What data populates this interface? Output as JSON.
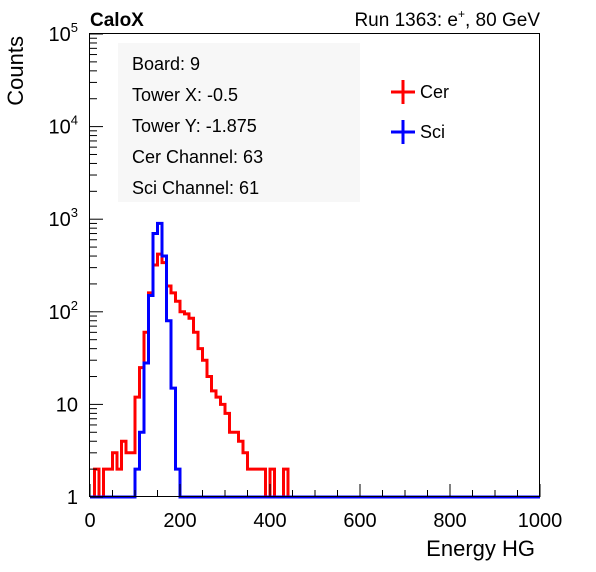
{
  "header": {
    "left_label": "CaloX",
    "right_label_prefix": "Run 1363: e",
    "right_label_sup": "+",
    "right_label_suffix": ", 80 GeV"
  },
  "info_box": {
    "lines": [
      "Board: 9",
      "Tower X: -0.5",
      "Tower Y: -1.875",
      "Cer Channel: 63",
      "Sci Channel: 61"
    ]
  },
  "legend": {
    "entries": [
      {
        "label": "Cer",
        "color": "#ff0000"
      },
      {
        "label": "Sci",
        "color": "#0000ff"
      }
    ]
  },
  "chart_data": {
    "type": "line",
    "xlabel": "Energy HG",
    "ylabel": "Counts",
    "xlim": [
      0,
      1000
    ],
    "ylim": [
      1,
      100000
    ],
    "y_scale": "log",
    "x_ticks": [
      0,
      200,
      400,
      600,
      800,
      1000
    ],
    "y_ticks": [
      {
        "value": 1,
        "base": "1",
        "exp": ""
      },
      {
        "value": 10,
        "base": "10",
        "exp": ""
      },
      {
        "value": 100,
        "base": "10",
        "exp": "2"
      },
      {
        "value": 1000,
        "base": "10",
        "exp": "3"
      },
      {
        "value": 10000,
        "base": "10",
        "exp": "4"
      },
      {
        "value": 100000,
        "base": "10",
        "exp": "5"
      }
    ],
    "grid": false,
    "legend_position": "top-right",
    "series": [
      {
        "name": "Cer",
        "color": "#ff0000",
        "x": [
          0,
          10,
          20,
          30,
          40,
          50,
          60,
          70,
          80,
          90,
          100,
          110,
          120,
          130,
          140,
          150,
          160,
          170,
          180,
          190,
          200,
          210,
          220,
          230,
          240,
          250,
          260,
          270,
          280,
          290,
          300,
          310,
          320,
          330,
          340,
          350,
          360,
          370,
          380,
          390,
          400,
          410,
          420,
          430,
          440,
          450,
          500,
          600,
          700,
          800,
          900,
          1000
        ],
        "y": [
          1,
          2,
          1,
          2,
          2,
          3,
          2,
          4,
          3,
          3,
          12,
          25,
          60,
          160,
          320,
          420,
          340,
          190,
          160,
          130,
          100,
          95,
          85,
          60,
          40,
          30,
          20,
          14,
          12,
          10,
          8,
          5,
          5,
          4,
          3,
          2,
          2,
          2,
          2,
          1,
          2,
          1,
          1,
          2,
          1,
          1,
          1,
          1,
          1,
          1,
          1,
          1
        ]
      },
      {
        "name": "Sci",
        "color": "#0000ff",
        "x": [
          0,
          90,
          100,
          110,
          120,
          130,
          140,
          150,
          160,
          170,
          180,
          190,
          200,
          1000
        ],
        "y": [
          1,
          1,
          2,
          5,
          28,
          150,
          700,
          900,
          400,
          80,
          15,
          2,
          1,
          1
        ]
      }
    ]
  }
}
